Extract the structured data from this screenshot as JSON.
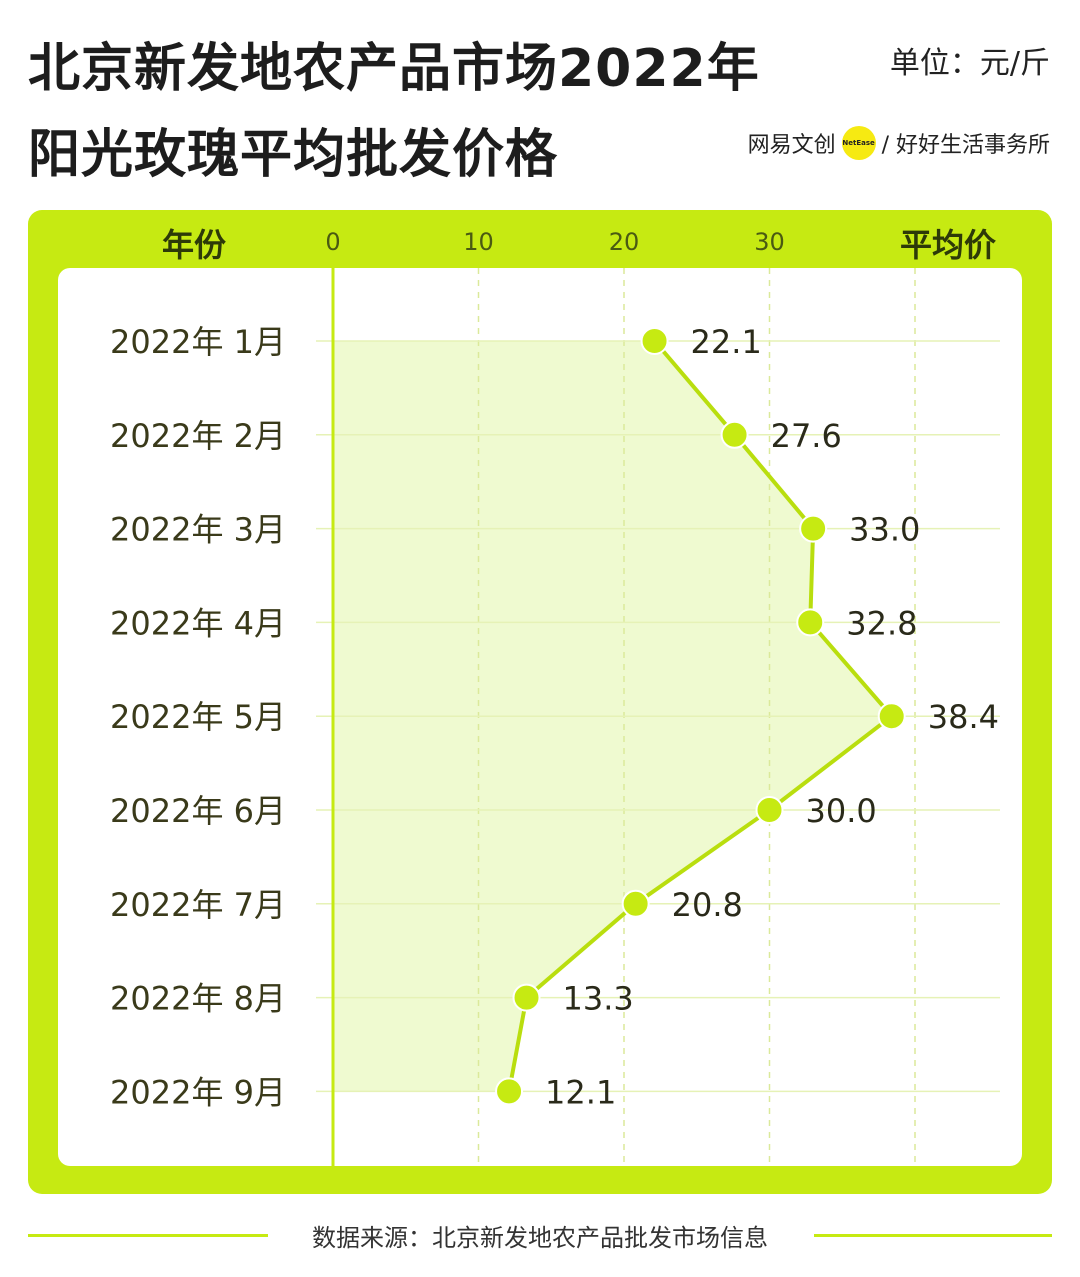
{
  "title_line1": "北京新发地农产品市场2022年",
  "title_line2": "阳光玫瑰平均批发价格",
  "unit": "单位：元/斤",
  "brand": {
    "left": "网易文创",
    "badge": "NetEase",
    "right": "/ 好好生活事务所"
  },
  "source": "数据来源：北京新发地农产品批发市场信息",
  "colors": {
    "accent": "#c6ea12",
    "fill": "#effad0",
    "dot": "#c6ea12",
    "line": "#b9de0e"
  },
  "chart_data": {
    "type": "line",
    "orientation": "horizontal",
    "category_axis_label": "年份",
    "value_axis_label": "平均价",
    "xlim": [
      0,
      40
    ],
    "xticks": [
      0,
      10,
      20,
      30
    ],
    "grid": true,
    "categories": [
      "2022年 1月",
      "2022年 2月",
      "2022年 3月",
      "2022年 4月",
      "2022年 5月",
      "2022年 6月",
      "2022年 7月",
      "2022年 8月",
      "2022年 9月"
    ],
    "values": [
      22.1,
      27.6,
      33.0,
      32.8,
      38.4,
      30.0,
      20.8,
      13.3,
      12.1
    ],
    "value_labels": [
      "22.1",
      "27.6",
      "33.0",
      "32.8",
      "38.4",
      "30.0",
      "20.8",
      "13.3",
      "12.1"
    ]
  }
}
